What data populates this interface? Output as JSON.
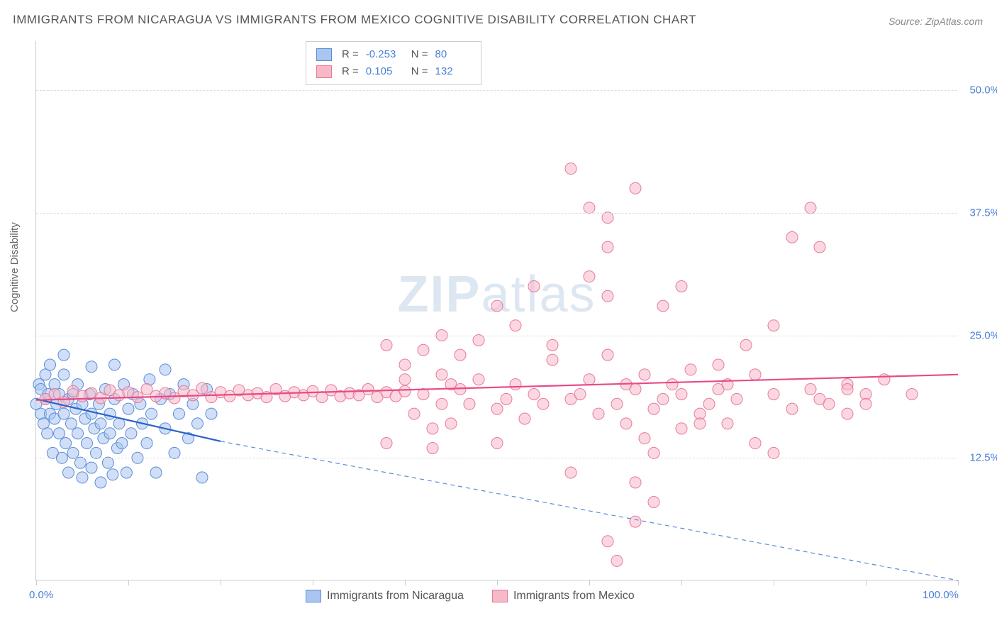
{
  "title": "IMMIGRANTS FROM NICARAGUA VS IMMIGRANTS FROM MEXICO COGNITIVE DISABILITY CORRELATION CHART",
  "source": "Source: ZipAtlas.com",
  "ylabel": "Cognitive Disability",
  "watermark_a": "ZIP",
  "watermark_b": "atlas",
  "chart": {
    "type": "scatter",
    "xlim": [
      0,
      100
    ],
    "ylim": [
      0,
      55
    ],
    "xticks": [
      0,
      10,
      20,
      30,
      40,
      50,
      60,
      70,
      80,
      90,
      100
    ],
    "xtick_labels": {
      "0": "0.0%",
      "100": "100.0%"
    },
    "yticks": [
      12.5,
      25.0,
      37.5,
      50.0
    ],
    "ytick_labels": [
      "12.5%",
      "25.0%",
      "37.5%",
      "50.0%"
    ],
    "background_color": "#ffffff",
    "grid_color": "#dddddd",
    "axis_color": "#cccccc",
    "tick_label_color": "#4a7fd8",
    "marker_radius": 8,
    "marker_opacity": 0.55,
    "series": [
      {
        "name": "Immigrants from Nicaragua",
        "color": "#6a9be8",
        "fill": "#a9c5f0",
        "stroke": "#5a8cd8",
        "R": "-0.253",
        "N": "80",
        "trend_solid": {
          "x1": 0,
          "y1": 18.5,
          "x2": 20,
          "y2": 14.2,
          "color": "#2a62c8",
          "width": 2.2
        },
        "trend_dashed": {
          "x1": 20,
          "y1": 14.2,
          "x2": 100,
          "y2": 0,
          "color": "#5a8cd8",
          "width": 1.2
        },
        "points": [
          [
            0,
            18
          ],
          [
            0.3,
            20
          ],
          [
            0.5,
            17
          ],
          [
            0.5,
            19.5
          ],
          [
            0.8,
            16
          ],
          [
            1,
            21
          ],
          [
            1,
            18.5
          ],
          [
            1.2,
            15
          ],
          [
            1.3,
            19
          ],
          [
            1.5,
            17
          ],
          [
            1.5,
            22
          ],
          [
            1.8,
            13
          ],
          [
            2,
            20
          ],
          [
            2,
            16.5
          ],
          [
            2.2,
            18
          ],
          [
            2.5,
            15
          ],
          [
            2.5,
            19
          ],
          [
            2.8,
            12.5
          ],
          [
            3,
            17
          ],
          [
            3,
            21
          ],
          [
            3.2,
            14
          ],
          [
            3.5,
            18.5
          ],
          [
            3.5,
            11
          ],
          [
            3.8,
            16
          ],
          [
            4,
            19
          ],
          [
            4,
            13
          ],
          [
            4.3,
            17.5
          ],
          [
            4.5,
            15
          ],
          [
            4.5,
            20
          ],
          [
            4.8,
            12
          ],
          [
            5,
            18
          ],
          [
            5,
            10.5
          ],
          [
            5.3,
            16.5
          ],
          [
            5.5,
            14
          ],
          [
            5.8,
            19
          ],
          [
            6,
            11.5
          ],
          [
            6,
            17
          ],
          [
            6.3,
            15.5
          ],
          [
            6.5,
            13
          ],
          [
            6.8,
            18
          ],
          [
            7,
            10
          ],
          [
            7,
            16
          ],
          [
            7.3,
            14.5
          ],
          [
            7.5,
            19.5
          ],
          [
            7.8,
            12
          ],
          [
            8,
            17
          ],
          [
            8,
            15
          ],
          [
            8.3,
            10.8
          ],
          [
            8.5,
            18.5
          ],
          [
            8.8,
            13.5
          ],
          [
            9,
            16
          ],
          [
            9.3,
            14
          ],
          [
            9.5,
            20
          ],
          [
            9.8,
            11
          ],
          [
            10,
            17.5
          ],
          [
            10.3,
            15
          ],
          [
            10.5,
            19
          ],
          [
            11,
            12.5
          ],
          [
            11.3,
            18
          ],
          [
            11.5,
            16
          ],
          [
            12,
            14
          ],
          [
            12.3,
            20.5
          ],
          [
            12.5,
            17
          ],
          [
            13,
            11
          ],
          [
            13.5,
            18.5
          ],
          [
            14,
            15.5
          ],
          [
            14.5,
            19
          ],
          [
            15,
            13
          ],
          [
            15.5,
            17
          ],
          [
            16,
            20
          ],
          [
            16.5,
            14.5
          ],
          [
            17,
            18
          ],
          [
            17.5,
            16
          ],
          [
            18,
            10.5
          ],
          [
            18.5,
            19.5
          ],
          [
            19,
            17
          ],
          [
            8.5,
            22
          ],
          [
            3,
            23
          ],
          [
            14,
            21.5
          ],
          [
            6,
            21.8
          ]
        ]
      },
      {
        "name": "Immigrants from Mexico",
        "color": "#f08ca8",
        "fill": "#f7b8c8",
        "stroke": "#e87a98",
        "R": "0.105",
        "N": "132",
        "trend_solid": {
          "x1": 0,
          "y1": 18.4,
          "x2": 100,
          "y2": 21.0,
          "color": "#e84a88",
          "width": 2.2
        },
        "trend_dashed": null,
        "points": [
          [
            1,
            18.5
          ],
          [
            2,
            19
          ],
          [
            3,
            18.2
          ],
          [
            4,
            19.3
          ],
          [
            5,
            18.8
          ],
          [
            6,
            19.1
          ],
          [
            7,
            18.6
          ],
          [
            8,
            19.4
          ],
          [
            9,
            18.9
          ],
          [
            10,
            19.2
          ],
          [
            11,
            18.7
          ],
          [
            12,
            19.5
          ],
          [
            13,
            18.8
          ],
          [
            14,
            19.1
          ],
          [
            15,
            18.6
          ],
          [
            16,
            19.3
          ],
          [
            17,
            18.9
          ],
          [
            18,
            19.6
          ],
          [
            19,
            18.7
          ],
          [
            20,
            19.2
          ],
          [
            21,
            18.8
          ],
          [
            22,
            19.4
          ],
          [
            23,
            18.9
          ],
          [
            24,
            19.1
          ],
          [
            25,
            18.7
          ],
          [
            26,
            19.5
          ],
          [
            27,
            18.8
          ],
          [
            28,
            19.2
          ],
          [
            29,
            18.9
          ],
          [
            30,
            19.3
          ],
          [
            31,
            18.7
          ],
          [
            32,
            19.4
          ],
          [
            33,
            18.8
          ],
          [
            34,
            19.1
          ],
          [
            35,
            18.9
          ],
          [
            36,
            19.5
          ],
          [
            37,
            18.7
          ],
          [
            38,
            19.2
          ],
          [
            39,
            18.8
          ],
          [
            40,
            19.3
          ],
          [
            38,
            14
          ],
          [
            40,
            20.5
          ],
          [
            41,
            17
          ],
          [
            42,
            19
          ],
          [
            43,
            15.5
          ],
          [
            44,
            18
          ],
          [
            45,
            20
          ],
          [
            38,
            24
          ],
          [
            40,
            22
          ],
          [
            42,
            23.5
          ],
          [
            43,
            13.5
          ],
          [
            44,
            21
          ],
          [
            45,
            16
          ],
          [
            46,
            19.5
          ],
          [
            47,
            18
          ],
          [
            48,
            20.5
          ],
          [
            50,
            17.5
          ],
          [
            44,
            25
          ],
          [
            46,
            23
          ],
          [
            48,
            24.5
          ],
          [
            50,
            14
          ],
          [
            51,
            18.5
          ],
          [
            52,
            20
          ],
          [
            53,
            16.5
          ],
          [
            54,
            19
          ],
          [
            55,
            18
          ],
          [
            56,
            22.5
          ],
          [
            50,
            28
          ],
          [
            52,
            26
          ],
          [
            54,
            30
          ],
          [
            56,
            24
          ],
          [
            58,
            18.5
          ],
          [
            58,
            11
          ],
          [
            59,
            19
          ],
          [
            60,
            20.5
          ],
          [
            60,
            38
          ],
          [
            61,
            17
          ],
          [
            62,
            23
          ],
          [
            58,
            42
          ],
          [
            60,
            31
          ],
          [
            62,
            29
          ],
          [
            63,
            18
          ],
          [
            64,
            20
          ],
          [
            65,
            19.5
          ],
          [
            66,
            21
          ],
          [
            67,
            17.5
          ],
          [
            62,
            34
          ],
          [
            64,
            16
          ],
          [
            66,
            14.5
          ],
          [
            68,
            28
          ],
          [
            68,
            18.5
          ],
          [
            69,
            20
          ],
          [
            70,
            19
          ],
          [
            71,
            21.5
          ],
          [
            72,
            17
          ],
          [
            65,
            10
          ],
          [
            67,
            8
          ],
          [
            62,
            4
          ],
          [
            70,
            30
          ],
          [
            82,
            35
          ],
          [
            73,
            18
          ],
          [
            74,
            19.5
          ],
          [
            75,
            20
          ],
          [
            76,
            18.5
          ],
          [
            78,
            21
          ],
          [
            80,
            19
          ],
          [
            82,
            17.5
          ],
          [
            84,
            19.5
          ],
          [
            86,
            18
          ],
          [
            88,
            20
          ],
          [
            80,
            26
          ],
          [
            75,
            16
          ],
          [
            78,
            14
          ],
          [
            85,
            18.5
          ],
          [
            90,
            19
          ],
          [
            92,
            20.5
          ],
          [
            85,
            34
          ],
          [
            88,
            17
          ],
          [
            95,
            19
          ],
          [
            84,
            38
          ],
          [
            72,
            16
          ],
          [
            74,
            22
          ],
          [
            77,
            24
          ],
          [
            65,
            6
          ],
          [
            67,
            13
          ],
          [
            70,
            15.5
          ],
          [
            80,
            13
          ],
          [
            63,
            2
          ],
          [
            65,
            40
          ],
          [
            62,
            37
          ],
          [
            88,
            19.5
          ],
          [
            90,
            18
          ]
        ]
      }
    ]
  }
}
